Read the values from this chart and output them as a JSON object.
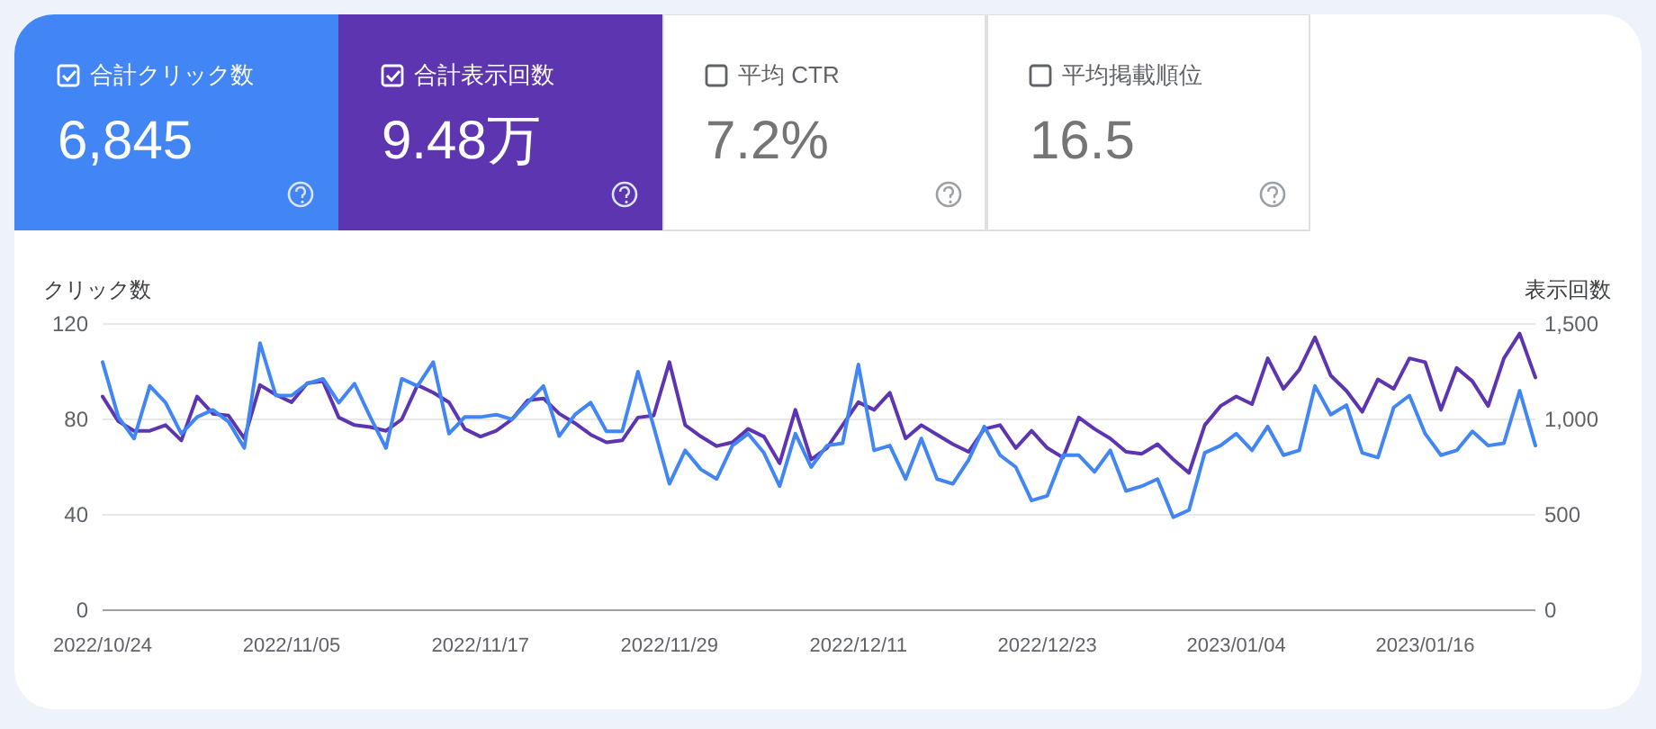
{
  "chart_data": [
    {
      "type": "other",
      "annotations": [
        "合計クリック数",
        "6,845",
        "合計表示回数",
        "9.48万",
        "平均 CTR",
        "7.2%",
        "平均掲載順位",
        "16.5"
      ]
    },
    {
      "type": "line",
      "ylabel": "クリック数",
      "y2label": "表示回数",
      "x": [
        "2022-10-24",
        "2022-10-25",
        "2022-10-26",
        "2022-10-27",
        "2022-10-28",
        "2022-10-29",
        "2022-10-30",
        "2022-10-31",
        "2022-11-01",
        "2022-11-02",
        "2022-11-03",
        "2022-11-04",
        "2022-11-05",
        "2022-11-06",
        "2022-11-07",
        "2022-11-08",
        "2022-11-09",
        "2022-11-10",
        "2022-11-11",
        "2022-11-12",
        "2022-11-13",
        "2022-11-14",
        "2022-11-15",
        "2022-11-16",
        "2022-11-17",
        "2022-11-18",
        "2022-11-19",
        "2022-11-20",
        "2022-11-21",
        "2022-11-22",
        "2022-11-23",
        "2022-11-24",
        "2022-11-25",
        "2022-11-26",
        "2022-11-27",
        "2022-11-28",
        "2022-11-29",
        "2022-11-30",
        "2022-12-01",
        "2022-12-02",
        "2022-12-03",
        "2022-12-04",
        "2022-12-05",
        "2022-12-06",
        "2022-12-07",
        "2022-12-08",
        "2022-12-09",
        "2022-12-10",
        "2022-12-11",
        "2022-12-12",
        "2022-12-13",
        "2022-12-14",
        "2022-12-15",
        "2022-12-16",
        "2022-12-17",
        "2022-12-18",
        "2022-12-19",
        "2022-12-20",
        "2022-12-21",
        "2022-12-22",
        "2022-12-23",
        "2022-12-24",
        "2022-12-25",
        "2022-12-26",
        "2022-12-27",
        "2022-12-28",
        "2022-12-29",
        "2022-12-30",
        "2022-12-31",
        "2023-01-01",
        "2023-01-02",
        "2023-01-03",
        "2023-01-04",
        "2023-01-05",
        "2023-01-06",
        "2023-01-07",
        "2023-01-08",
        "2023-01-09",
        "2023-01-10",
        "2023-01-11",
        "2023-01-12",
        "2023-01-13",
        "2023-01-14",
        "2023-01-15",
        "2023-01-16",
        "2023-01-17",
        "2023-01-18",
        "2023-01-19",
        "2023-01-20",
        "2023-01-21",
        "2023-01-22",
        "2023-01-23"
      ],
      "series": [
        {
          "color": "#5e35b1",
          "axis": "y2",
          "values": [
            1120,
            990,
            940,
            940,
            970,
            890,
            1120,
            1030,
            1020,
            900,
            1180,
            1130,
            1090,
            1190,
            1200,
            1010,
            970,
            960,
            940,
            1000,
            1180,
            1140,
            1090,
            950,
            910,
            940,
            1000,
            1100,
            1110,
            1030,
            980,
            920,
            880,
            890,
            1010,
            1020,
            1300,
            970,
            910,
            860,
            880,
            950,
            910,
            770,
            1050,
            790,
            850,
            970,
            1090,
            1050,
            1140,
            900,
            970,
            920,
            870,
            830,
            950,
            970,
            850,
            940,
            850,
            800,
            1010,
            950,
            900,
            830,
            820,
            870,
            790,
            720,
            970,
            1070,
            1120,
            1080,
            1320,
            1160,
            1260,
            1430,
            1230,
            1150,
            1040,
            1210,
            1160,
            1320,
            1300,
            1050,
            1270,
            1200,
            1070,
            1320,
            1450,
            1220
          ]
        },
        {
          "color": "#4285f4",
          "values": [
            104,
            81,
            72,
            94,
            87,
            74,
            81,
            84,
            79,
            68,
            112,
            90,
            90,
            95,
            97,
            87,
            95,
            81,
            68,
            97,
            94,
            104,
            74,
            81,
            81,
            82,
            80,
            87,
            94,
            73,
            82,
            87,
            75,
            75,
            100,
            77,
            53,
            67,
            59,
            55,
            69,
            74,
            66,
            52,
            74,
            60,
            69,
            70,
            103,
            67,
            69,
            55,
            72,
            55,
            53,
            63,
            77,
            65,
            60,
            46,
            48,
            65,
            65,
            58,
            67,
            50,
            52,
            55,
            39,
            42,
            66,
            69,
            74,
            67,
            77,
            65,
            67,
            94,
            82,
            86,
            66,
            64,
            85,
            90,
            74,
            65,
            67,
            75,
            69,
            70,
            92,
            69
          ]
        }
      ],
      "xlim": [
        "2022-10-24",
        "2023-01-23"
      ],
      "xticks": [
        {
          "value": "2022-10-24",
          "label": "2022/10/24"
        },
        {
          "value": "2022-11-05",
          "label": "2022/11/05"
        },
        {
          "value": "2022-11-17",
          "label": "2022/11/17"
        },
        {
          "value": "2022-11-29",
          "label": "2022/11/29"
        },
        {
          "value": "2022-12-11",
          "label": "2022/12/11"
        },
        {
          "value": "2022-12-23",
          "label": "2022/12/23"
        },
        {
          "value": "2023-01-04",
          "label": "2023/01/04"
        },
        {
          "value": "2023-01-16",
          "label": "2023/01/16"
        }
      ],
      "ylim": [
        0,
        120
      ],
      "yticks": [
        0,
        40,
        80,
        120
      ],
      "y2lim": [
        0,
        1500
      ],
      "y2ticks": [
        0,
        500,
        {
          "value": 1000,
          "label": "1,000"
        },
        {
          "value": 1500,
          "label": "1,500"
        }
      ],
      "grid": "y",
      "marker": "none",
      "line_style": "solid"
    }
  ]
}
